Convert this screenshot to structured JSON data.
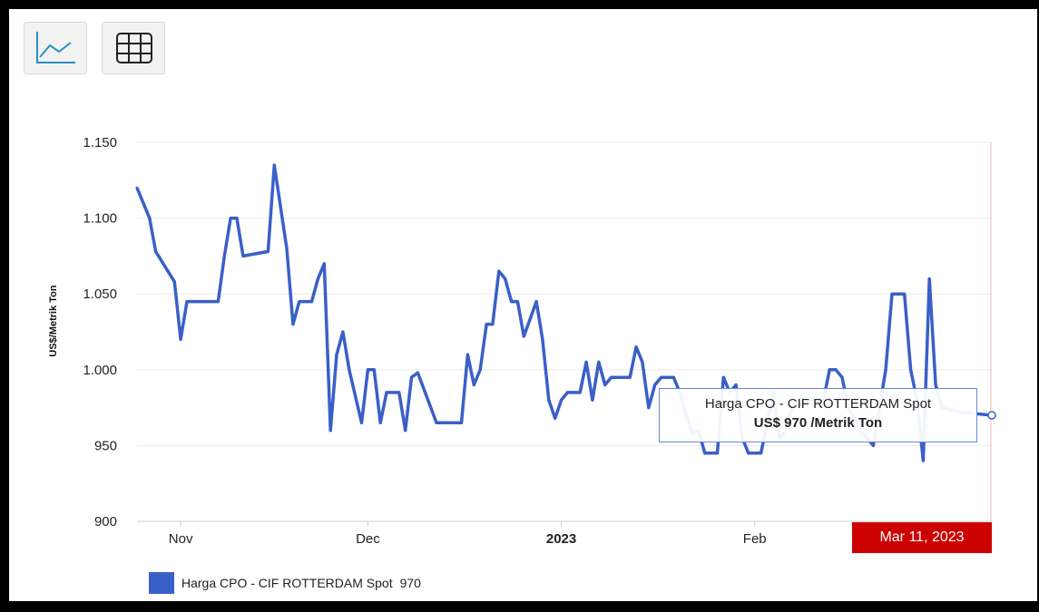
{
  "toolbar": {
    "chart_icon": "line-chart-icon",
    "table_icon": "table-grid-icon"
  },
  "colors": {
    "series": "#3a5fc8",
    "badge": "#cc0000",
    "tooltip_border": "#6b89d6"
  },
  "tooltip": {
    "series": "Harga CPO - CIF ROTTERDAM Spot",
    "value_text": "US$ 970 /Metrik Ton"
  },
  "crosshair_badge": "Mar 11, 2023",
  "legend": {
    "label": "Harga CPO - CIF ROTTERDAM Spot",
    "value": "970"
  },
  "chart_data": {
    "type": "line",
    "ylabel": "US$/Metrik Ton",
    "ylim": [
      900,
      1150
    ],
    "yticks": [
      {
        "value": 900,
        "label": "900"
      },
      {
        "value": 950,
        "label": "950"
      },
      {
        "value": 1000,
        "label": "1.000"
      },
      {
        "value": 1050,
        "label": "1.050"
      },
      {
        "value": 1100,
        "label": "1.100"
      },
      {
        "value": 1150,
        "label": "1.150"
      }
    ],
    "xlim": [
      "2022-10-25",
      "2023-03-11"
    ],
    "xticks": [
      {
        "date": "2022-11-01",
        "label": "Nov",
        "bold": false
      },
      {
        "date": "2022-12-01",
        "label": "Dec",
        "bold": false
      },
      {
        "date": "2023-01-01",
        "label": "2023",
        "bold": true
      },
      {
        "date": "2023-02-01",
        "label": "Feb",
        "bold": false
      }
    ],
    "grid": true,
    "legend_position": "bottom-left",
    "series": [
      {
        "name": "Harga CPO - CIF ROTTERDAM Spot",
        "points": [
          [
            "2022-10-25",
            1120
          ],
          [
            "2022-10-27",
            1100
          ],
          [
            "2022-10-28",
            1078
          ],
          [
            "2022-10-31",
            1058
          ],
          [
            "2022-11-01",
            1020
          ],
          [
            "2022-11-02",
            1045
          ],
          [
            "2022-11-03",
            1045
          ],
          [
            "2022-11-06",
            1045
          ],
          [
            "2022-11-07",
            1045
          ],
          [
            "2022-11-08",
            1075
          ],
          [
            "2022-11-09",
            1100
          ],
          [
            "2022-11-10",
            1100
          ],
          [
            "2022-11-11",
            1075
          ],
          [
            "2022-11-15",
            1078
          ],
          [
            "2022-11-16",
            1135
          ],
          [
            "2022-11-18",
            1080
          ],
          [
            "2022-11-19",
            1030
          ],
          [
            "2022-11-20",
            1045
          ],
          [
            "2022-11-22",
            1045
          ],
          [
            "2022-11-23",
            1060
          ],
          [
            "2022-11-24",
            1070
          ],
          [
            "2022-11-25",
            960
          ],
          [
            "2022-11-26",
            1010
          ],
          [
            "2022-11-27",
            1025
          ],
          [
            "2022-11-28",
            1000
          ],
          [
            "2022-11-30",
            965
          ],
          [
            "2022-12-01",
            1000
          ],
          [
            "2022-12-02",
            1000
          ],
          [
            "2022-12-03",
            965
          ],
          [
            "2022-12-04",
            985
          ],
          [
            "2022-12-06",
            985
          ],
          [
            "2022-12-07",
            960
          ],
          [
            "2022-12-08",
            995
          ],
          [
            "2022-12-09",
            998
          ],
          [
            "2022-12-12",
            965
          ],
          [
            "2022-12-16",
            965
          ],
          [
            "2022-12-17",
            1010
          ],
          [
            "2022-12-18",
            990
          ],
          [
            "2022-12-19",
            1000
          ],
          [
            "2022-12-20",
            1030
          ],
          [
            "2022-12-21",
            1030
          ],
          [
            "2022-12-22",
            1065
          ],
          [
            "2022-12-23",
            1060
          ],
          [
            "2022-12-24",
            1045
          ],
          [
            "2022-12-25",
            1045
          ],
          [
            "2022-12-26",
            1022
          ],
          [
            "2022-12-28",
            1045
          ],
          [
            "2022-12-29",
            1020
          ],
          [
            "2022-12-30",
            980
          ],
          [
            "2022-12-31",
            968
          ],
          [
            "2023-01-01",
            980
          ],
          [
            "2023-01-02",
            985
          ],
          [
            "2023-01-03",
            985
          ],
          [
            "2023-01-04",
            985
          ],
          [
            "2023-01-05",
            1005
          ],
          [
            "2023-01-06",
            980
          ],
          [
            "2023-01-07",
            1005
          ],
          [
            "2023-01-08",
            990
          ],
          [
            "2023-01-09",
            995
          ],
          [
            "2023-01-12",
            995
          ],
          [
            "2023-01-13",
            1015
          ],
          [
            "2023-01-14",
            1005
          ],
          [
            "2023-01-15",
            975
          ],
          [
            "2023-01-16",
            990
          ],
          [
            "2023-01-17",
            995
          ],
          [
            "2023-01-19",
            995
          ],
          [
            "2023-01-20",
            985
          ],
          [
            "2023-01-21",
            970
          ],
          [
            "2023-01-22",
            958
          ],
          [
            "2023-01-23",
            960
          ],
          [
            "2023-01-24",
            945
          ],
          [
            "2023-01-25",
            945
          ],
          [
            "2023-01-26",
            945
          ],
          [
            "2023-01-27",
            995
          ],
          [
            "2023-01-28",
            985
          ],
          [
            "2023-01-29",
            990
          ],
          [
            "2023-01-30",
            955
          ],
          [
            "2023-01-31",
            945
          ],
          [
            "2023-02-01",
            945
          ],
          [
            "2023-02-02",
            945
          ],
          [
            "2023-02-04",
            985
          ],
          [
            "2023-02-05",
            955
          ],
          [
            "2023-02-06",
            960
          ],
          [
            "2023-02-07",
            975
          ],
          [
            "2023-02-10",
            980
          ],
          [
            "2023-02-12",
            980
          ],
          [
            "2023-02-13",
            1000
          ],
          [
            "2023-02-14",
            1000
          ],
          [
            "2023-02-15",
            995
          ],
          [
            "2023-02-16",
            975
          ],
          [
            "2023-02-18",
            960
          ],
          [
            "2023-02-20",
            950
          ],
          [
            "2023-02-21",
            975
          ],
          [
            "2023-02-22",
            1000
          ],
          [
            "2023-02-23",
            1050
          ],
          [
            "2023-02-25",
            1050
          ],
          [
            "2023-02-26",
            1000
          ],
          [
            "2023-02-27",
            980
          ],
          [
            "2023-02-28",
            940
          ],
          [
            "2023-03-01",
            1060
          ],
          [
            "2023-03-02",
            990
          ],
          [
            "2023-03-03",
            975
          ],
          [
            "2023-03-06",
            972
          ],
          [
            "2023-03-11",
            970
          ]
        ]
      }
    ]
  }
}
